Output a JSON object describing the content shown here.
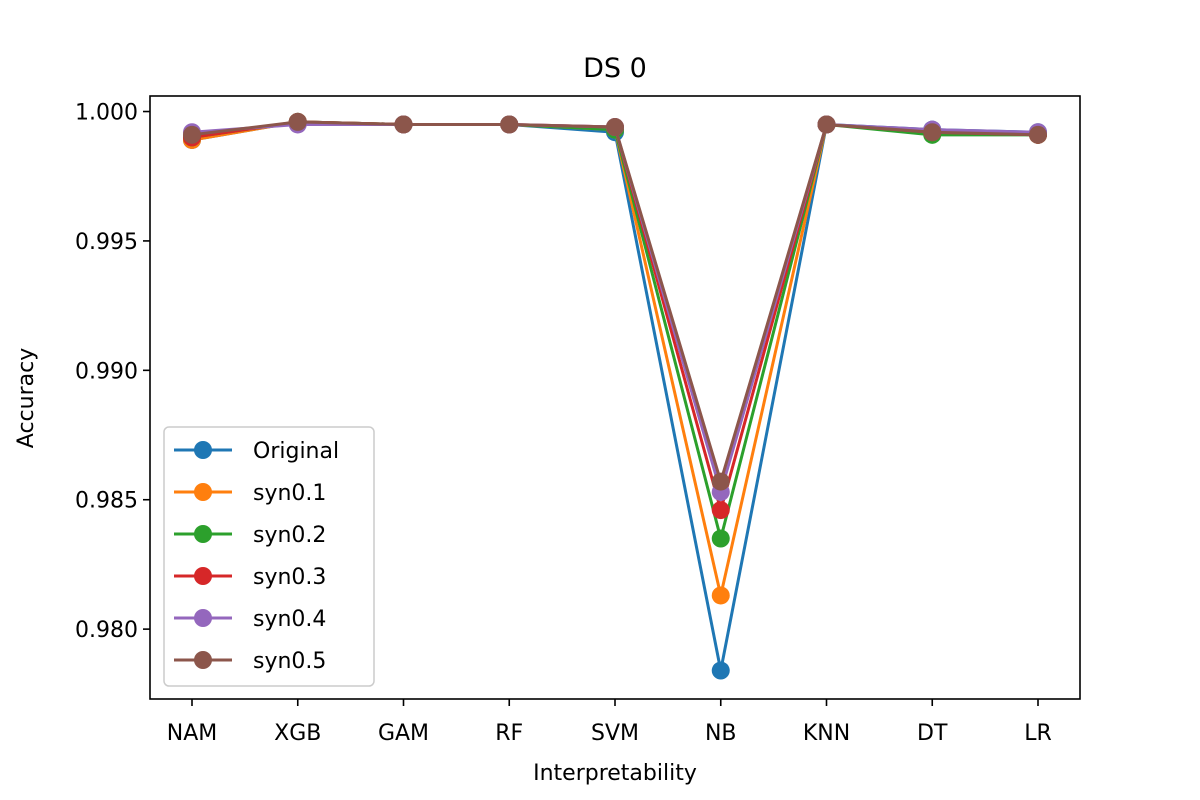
{
  "chart_data": {
    "type": "line",
    "title": "DS 0",
    "xlabel": "Interpretability",
    "ylabel": "Accuracy",
    "categories": [
      "NAM",
      "XGB",
      "GAM",
      "RF",
      "SVM",
      "NB",
      "KNN",
      "DT",
      "LR"
    ],
    "ylim": [
      0.9773,
      1.0006
    ],
    "yticks": [
      0.98,
      0.985,
      0.99,
      0.995,
      1.0
    ],
    "ytick_labels": [
      "0.980",
      "0.985",
      "0.990",
      "0.995",
      "1.000"
    ],
    "grid": false,
    "legend_position": "lower-left",
    "series": [
      {
        "name": "Original",
        "color": "#1f77b4",
        "values": [
          0.9989,
          0.9996,
          0.9995,
          0.9995,
          0.9992,
          0.9784,
          0.9995,
          0.9993,
          0.9992
        ]
      },
      {
        "name": "syn0.1",
        "color": "#ff7f0e",
        "values": [
          0.9989,
          0.9996,
          0.9995,
          0.9995,
          0.9993,
          0.9813,
          0.9995,
          0.9992,
          0.9991
        ]
      },
      {
        "name": "syn0.2",
        "color": "#2ca02c",
        "values": [
          0.999,
          0.9996,
          0.9995,
          0.9995,
          0.9993,
          0.9835,
          0.9995,
          0.9991,
          0.9991
        ]
      },
      {
        "name": "syn0.3",
        "color": "#d62728",
        "values": [
          0.999,
          0.9996,
          0.9995,
          0.9995,
          0.9994,
          0.9846,
          0.9995,
          0.9992,
          0.9991
        ]
      },
      {
        "name": "syn0.4",
        "color": "#9467bd",
        "values": [
          0.9992,
          0.9995,
          0.9995,
          0.9995,
          0.9994,
          0.9853,
          0.9995,
          0.9993,
          0.9992
        ]
      },
      {
        "name": "syn0.5",
        "color": "#8c564b",
        "values": [
          0.9991,
          0.9996,
          0.9995,
          0.9995,
          0.9994,
          0.9857,
          0.9995,
          0.9992,
          0.9991
        ]
      }
    ]
  }
}
